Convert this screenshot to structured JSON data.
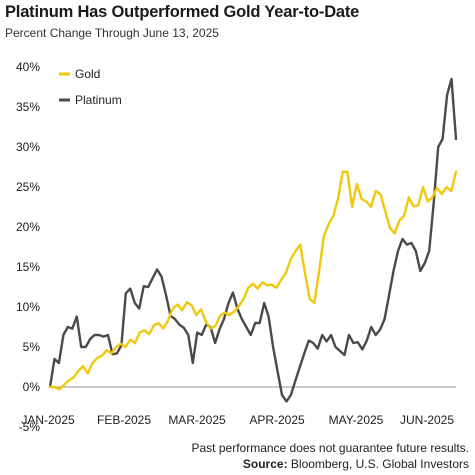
{
  "header": {
    "title": "Platinum Has Outperformed Gold Year-to-Date",
    "subtitle": "Percent Change Through June 13, 2025"
  },
  "footer": {
    "note": "Past performance does not guarantee future results.",
    "source_label": "Source:",
    "source_text": " Bloomberg, U.S. Global Investors"
  },
  "colors": {
    "gold": "#f2c80f",
    "platinum": "#4a4a4a",
    "axis": "#999999"
  },
  "chart_data": {
    "type": "line",
    "title": "Platinum Has Outperformed Gold Year-to-Date",
    "subtitle": "Percent Change Through June 13, 2025",
    "xlabel": "",
    "ylabel": "",
    "x_ticks": [
      "JAN-2025",
      "FEB-2025",
      "MAR-2025",
      "APR-2025",
      "MAY-2025",
      "JUN-2025"
    ],
    "y_ticks": [
      "40%",
      "35%",
      "30%",
      "25%",
      "20%",
      "15%",
      "10%",
      "5%",
      "0%",
      "-5%"
    ],
    "y_tick_values": [
      40,
      35,
      30,
      25,
      20,
      15,
      10,
      5,
      0,
      -5
    ],
    "ylim": [
      -5,
      40
    ],
    "grid": false,
    "legend_position": "top-left",
    "series": [
      {
        "name": "Gold",
        "color": "#f2c80f",
        "values": [
          0,
          0,
          -0.3,
          0.3,
          0.8,
          1.2,
          2.0,
          2.6,
          1.7,
          3.0,
          3.6,
          3.9,
          4.6,
          4.2,
          5.0,
          5.4,
          5.0,
          5.9,
          5.5,
          6.8,
          7.1,
          6.6,
          7.7,
          8.0,
          7.3,
          8.3,
          9.8,
          10.3,
          9.6,
          10.6,
          10.2,
          9.0,
          9.7,
          8.2,
          7.3,
          7.6,
          8.9,
          9.3,
          9.0,
          9.4,
          10.1,
          11.0,
          12.4,
          12.9,
          12.3,
          13.1,
          12.7,
          12.8,
          12.4,
          13.4,
          14.3,
          16.0,
          17.0,
          17.8,
          14.3,
          11.0,
          10.5,
          14.5,
          18.8,
          20.3,
          21.4,
          23.5,
          26.9,
          26.9,
          22.5,
          25.4,
          23.5,
          23.2,
          22.5,
          24.5,
          24.1,
          22.0,
          19.9,
          19.2,
          20.8,
          21.4,
          23.7,
          22.6,
          22.7,
          25.0,
          23.2,
          23.7,
          24.9,
          24.1,
          25.0,
          24.5,
          26.9
        ]
      },
      {
        "name": "Platinum",
        "color": "#4a4a4a",
        "values": [
          0,
          3.5,
          3.0,
          6.5,
          7.5,
          7.3,
          8.8,
          5.0,
          5.0,
          6.0,
          6.5,
          6.5,
          6.3,
          6.5,
          4.1,
          4.2,
          5.2,
          11.7,
          12.3,
          10.5,
          9.8,
          12.6,
          12.5,
          13.6,
          14.7,
          13.8,
          11.5,
          8.9,
          8.5,
          7.8,
          7.4,
          6.5,
          3.0,
          6.8,
          6.5,
          7.8,
          7.5,
          5.5,
          7.2,
          8.5,
          10.5,
          11.8,
          9.8,
          8.5,
          7.5,
          6.5,
          8.0,
          8.0,
          10.5,
          8.8,
          5.0,
          2.0,
          -1.0,
          -1.8,
          -1.0,
          0.8,
          2.5,
          4.2,
          5.8,
          5.5,
          4.8,
          6.5,
          5.7,
          6.5,
          5.0,
          4.5,
          4.0,
          6.5,
          5.5,
          5.6,
          4.7,
          5.8,
          7.5,
          6.5,
          7.2,
          8.5,
          11.5,
          14.5,
          17.0,
          18.5,
          17.8,
          18.0,
          17.0,
          14.5,
          15.5,
          17.0,
          23.0,
          30.0,
          31.0,
          36.5,
          38.5,
          31.0
        ]
      }
    ]
  }
}
